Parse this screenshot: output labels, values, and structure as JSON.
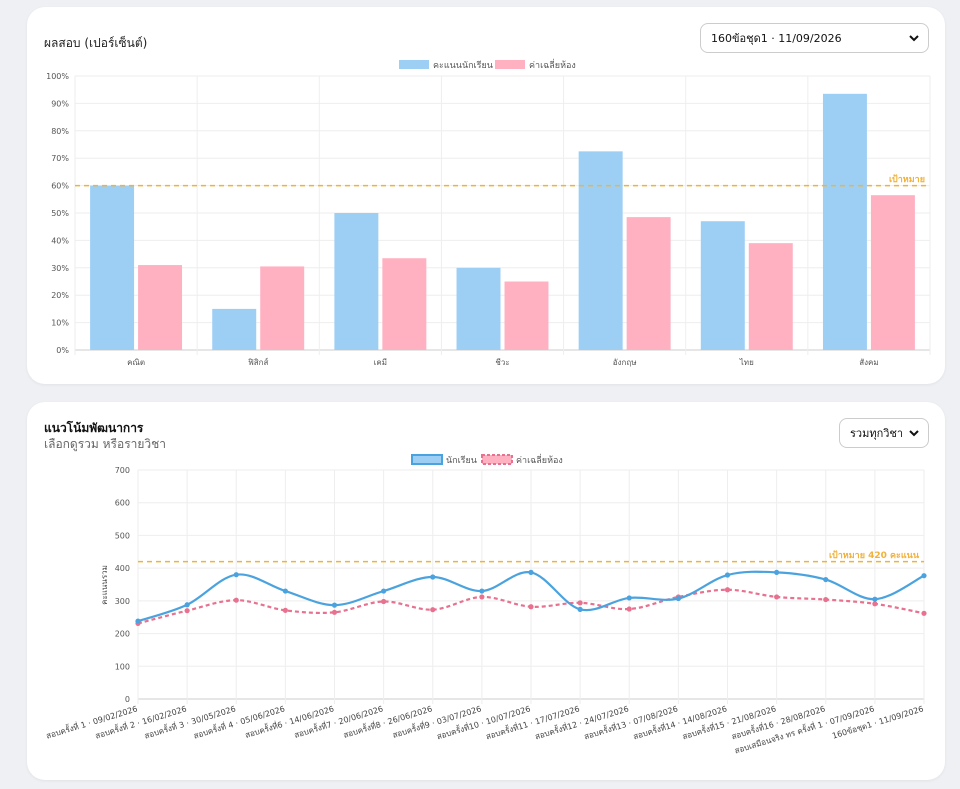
{
  "score_card": {
    "title": "ผลสอบ (เปอร์เซ็นต์)",
    "select_value": "160ข้อชุด1 · 11/09/2026",
    "legend": [
      "คะแนนนักเรียน",
      "ค่าเฉลี่ยห้อง"
    ],
    "target_label": "เป้าหมาย"
  },
  "trend_card": {
    "title": "แนวโน้มพัฒนาการ",
    "subtitle": "เลือกดูรวม หรือรายวิชา",
    "select_value": "รวมทุกวิชา",
    "legend": [
      "นักเรียน",
      "ค่าเฉลี่ยห้อง"
    ],
    "target_label": "เป้าหมาย 420 คะแนน",
    "ylabel": "คะแนนรวม"
  },
  "colors": {
    "student_bar": "#9dcff5",
    "class_bar": "#ffb1c1",
    "student_line": "#4aa3df",
    "class_line": "#e8718f",
    "target": "#f0b23a"
  },
  "chart_data": [
    {
      "type": "bar",
      "title": "ผลสอบ (เปอร์เซ็นต์)",
      "categories": [
        "คณิต",
        "ฟิสิกส์",
        "เคมี",
        "ชีวะ",
        "อังกฤษ",
        "ไทย",
        "สังคม"
      ],
      "series": [
        {
          "name": "คะแนนนักเรียน",
          "values": [
            60,
            15,
            50,
            30,
            72.5,
            47,
            93.5
          ]
        },
        {
          "name": "ค่าเฉลี่ยห้อง",
          "values": [
            31,
            30.5,
            33.5,
            25,
            48.5,
            39,
            56.5
          ]
        }
      ],
      "target": 60,
      "ylim": [
        0,
        100
      ],
      "yticks": [
        "0%",
        "10%",
        "20%",
        "30%",
        "40%",
        "50%",
        "60%",
        "70%",
        "80%",
        "90%",
        "100%"
      ],
      "grid": true,
      "legend": "top-center"
    },
    {
      "type": "line",
      "title": "แนวโน้มพัฒนาการ",
      "ylabel": "คะแนนรวม",
      "x": [
        "สอบครั้งที่ 1 · 09/02/2026",
        "สอบครั้งที่ 2 · 16/02/2026",
        "สอบครั้งที่ 3 · 30/05/2026",
        "สอบครั้งที่ 4 · 05/06/2026",
        "สอบครั้งที่6 · 14/06/2026",
        "สอบครั้งที่7 · 20/06/2026",
        "สอบครั้งที่8 · 26/06/2026",
        "สอบครั้งที่9 · 03/07/2026",
        "สอบครั้งที่10 · 10/07/2026",
        "สอบครั้งที่11 · 17/07/2026",
        "สอบครั้งที่12 · 24/07/2026",
        "สอบครั้งที่13 · 07/08/2026",
        "สอบครั้งที่14 · 14/08/2026",
        "สอบครั้งที่15 · 21/08/2026",
        "สอบครั้งที่16 · 28/08/2026",
        "สอบเสมือนจริง ทร ครั้งที่ 1 · 07/09/2026",
        "160ข้อชุด1 · 11/09/2026"
      ],
      "series": [
        {
          "name": "นักเรียน",
          "values": [
            238,
            288,
            380,
            330,
            287,
            330,
            373,
            330,
            387,
            274,
            309,
            307,
            379,
            387,
            365,
            305,
            377
          ]
        },
        {
          "name": "ค่าเฉลี่ยห้อง",
          "values": [
            231,
            270,
            302,
            271,
            265,
            298,
            273,
            312,
            282,
            294,
            275,
            312,
            334,
            312,
            304,
            291,
            262
          ]
        }
      ],
      "target": 420,
      "ylim": [
        0,
        700
      ],
      "yticks": [
        "0",
        "100",
        "200",
        "300",
        "400",
        "500",
        "600",
        "700"
      ],
      "grid": true,
      "legend": "top-center"
    }
  ]
}
